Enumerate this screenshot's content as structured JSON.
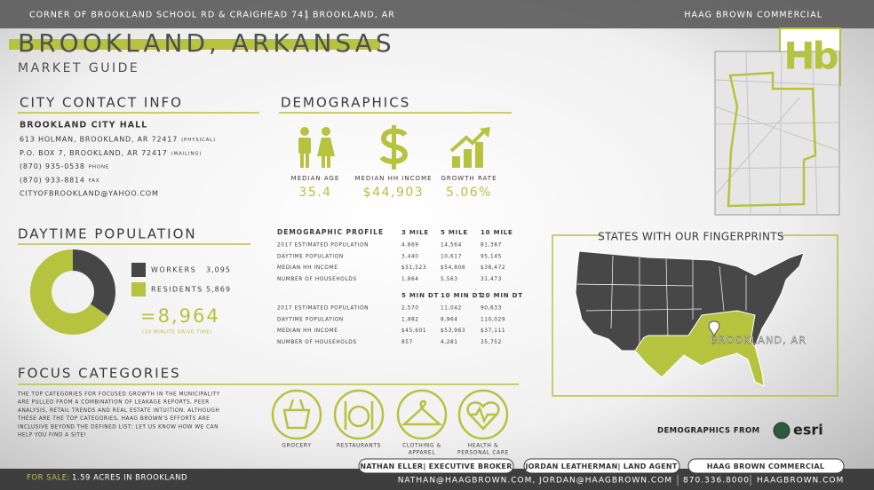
{
  "header": {
    "address": "CORNER OF BROOKLAND SCHOOL RD & CRAIGHEAD 741",
    "city": "BROOKLAND, AR",
    "company": "HAAG BROWN COMMERCIAL"
  },
  "logo": "Hb",
  "title": "BROOKLAND, ARKANSAS",
  "subtitle": "MARKET GUIDE",
  "contact": {
    "heading": "CITY CONTACT INFO",
    "name": "BROOKLAND CITY HALL",
    "lines": [
      {
        "text": "613 HOLMAN, BROOKLAND, AR 72417",
        "note": "(PHYSICAL)"
      },
      {
        "text": "P.O. BOX 7, BROOKLAND, AR 72417",
        "note": "(MAILING)"
      },
      {
        "text": "(870) 935-0538",
        "note": "PHONE"
      },
      {
        "text": "(870) 933-8814",
        "note": "FAX"
      },
      {
        "text": "CITYOFBROOKLAND@YAHOO.COM"
      }
    ]
  },
  "demographics": {
    "heading": "DEMOGRAPHICS",
    "stats": [
      {
        "label": "MEDIAN AGE",
        "value": "35.4"
      },
      {
        "label": "MEDIAN HH INCOME",
        "value": "$44,903"
      },
      {
        "label": "GROWTH RATE",
        "value": "5.06%"
      }
    ]
  },
  "daytime_population": {
    "heading": "DAYTIME POPULATION",
    "segments": [
      {
        "name": "WORKERS",
        "value": 3095,
        "value_label": "3,095",
        "color": "#464646"
      },
      {
        "name": "RESIDENTS",
        "value": 5869,
        "value_label": "5,869",
        "color": "#b5c33e"
      }
    ],
    "total": "=8,964",
    "note": "(10 MINUTE DRIVE TIME)"
  },
  "profile": {
    "title": "DEMOGRAPHIC PROFILE",
    "radius": {
      "columns": [
        "3 MILE",
        "5 MILE",
        "10 MILE"
      ],
      "rows": [
        {
          "label": "2017 ESTIMATED POPULATION",
          "values": [
            "4,869",
            "14,564",
            "81,387"
          ]
        },
        {
          "label": "DAYTIME POPULATION",
          "values": [
            "3,440",
            "10,617",
            "95,145"
          ]
        },
        {
          "label": "MEDIAN HH INCOME",
          "values": [
            "$51,523",
            "$54,806",
            "$38,472"
          ]
        },
        {
          "label": "NUMBER OF HOUSEHOLDS",
          "values": [
            "1,864",
            "5,563",
            "31,473"
          ]
        }
      ]
    },
    "drive_time": {
      "columns": [
        "5 MIN DT",
        "10 MIN DT",
        "20 MIN DT"
      ],
      "rows": [
        {
          "label": "2017 ESTIMATED POPULATION",
          "values": [
            "2,570",
            "11,042",
            "90,633"
          ]
        },
        {
          "label": "DAYTIME POPULATION",
          "values": [
            "1,982",
            "8,964",
            "110,029"
          ]
        },
        {
          "label": "MEDIAN HH INCOME",
          "values": [
            "$45,601",
            "$53,963",
            "$37,111"
          ]
        },
        {
          "label": "NUMBER OF HOUSEHOLDS",
          "values": [
            "857",
            "4,281",
            "35,752"
          ]
        }
      ]
    }
  },
  "states": {
    "title": "STATES WITH OUR FINGERPRINTS",
    "label": "BROOKLAND, AR"
  },
  "focus": {
    "heading": "FOCUS CATEGORIES",
    "text": [
      "THE TOP CATEGORIES FOR FOCUSED GROWTH IN THE MUNICIPALITY",
      "ARE PULLED FROM A COMBINATION OF LEAKAGE REPORTS, PEER",
      "ANALYSIS, RETAIL TRENDS AND REAL ESTATE INTUITION. ALTHOUGH",
      "THESE ARE THE TOP CATEGORIES, HAAG BROWN'S EFFORTS ARE",
      "INCLUSIVE BEYOND THE DEFINED LIST; LET US KNOW HOW WE CAN",
      "HELP YOU FIND A SITE!"
    ],
    "categories": [
      {
        "label": [
          "GROCERY"
        ]
      },
      {
        "label": [
          "RESTAURANTS"
        ]
      },
      {
        "label": [
          "CLOTHING &",
          "APPAREL"
        ]
      },
      {
        "label": [
          "HEALTH &",
          "PERSONAL CARE"
        ]
      }
    ]
  },
  "source": {
    "text": "DEMOGRAPHICS FROM",
    "brand": "esri"
  },
  "footer": {
    "sale_label": "FOR SALE:",
    "sale_text": "1.59 ACRES IN BROOKLAND",
    "contacts": [
      "NATHAN ELLER| EXECUTIVE BROKER",
      "JORDAN LEATHERMAN| LAND AGENT",
      "HAAG BROWN COMMERCIAL"
    ],
    "emails": "NATHAN@HAAGBROWN.COM, JORDAN@HAAGBROWN.COM",
    "phone": "870.336.8000",
    "site": "HAAGBROWN.COM"
  }
}
